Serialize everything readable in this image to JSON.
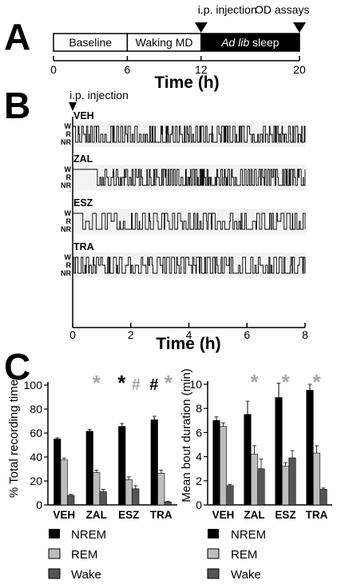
{
  "panel_a": {
    "letter": "A",
    "segments": [
      {
        "label": "Baseline",
        "start": 0,
        "end": 6,
        "fill": "#ffffff",
        "text_color": "#000000",
        "italic_part": ""
      },
      {
        "label": "Waking MD",
        "start": 6,
        "end": 12,
        "fill": "#ffffff",
        "text_color": "#000000",
        "italic_part": ""
      },
      {
        "label": " sleep",
        "start": 12,
        "end": 20,
        "fill": "#000000",
        "text_color": "#ffffff",
        "italic_part": "Ad lib"
      }
    ],
    "ticks": [
      0,
      6,
      12,
      20
    ],
    "xlabel": "Time (h)",
    "markers": [
      {
        "label": "i.p. injection",
        "at": 12
      },
      {
        "label": "OD assays",
        "at": 20
      }
    ]
  },
  "panel_b": {
    "letter": "B",
    "injection_label": "i.p. injection",
    "state_labels": [
      "W",
      "R",
      "NR"
    ],
    "traces": [
      {
        "name": "VEH",
        "onset": 0.1,
        "rate": 5.0,
        "seed": 11
      },
      {
        "name": "ZAL",
        "onset": 0.85,
        "rate": 5.6,
        "seed": 23
      },
      {
        "name": "ESZ",
        "onset": 0.35,
        "rate": 3.2,
        "seed": 37
      },
      {
        "name": "TRA",
        "onset": 0.05,
        "rate": 3.6,
        "seed": 53
      }
    ],
    "ticks": [
      0,
      2,
      4,
      6,
      8
    ],
    "xlabel": "Time (h)"
  },
  "panel_c": {
    "letter": "C",
    "colors": {
      "NREM": "#000000",
      "REM": "#bdbdbd",
      "Wake": "#555555",
      "sig_gray": "#a6a6a6"
    },
    "legend": [
      "NREM",
      "REM",
      "Wake"
    ],
    "chart_data": [
      {
        "type": "bar",
        "categories": [
          "VEH",
          "ZAL",
          "ESZ",
          "TRA"
        ],
        "ylabel": "% Total recording time",
        "ylim": [
          0,
          100
        ],
        "yticks": [
          0,
          20,
          40,
          60,
          80,
          100
        ],
        "series": [
          {
            "name": "NREM",
            "values": [
              55,
              61.5,
              65.5,
              71
            ],
            "errors": [
              1,
              1.5,
              2.5,
              3
            ]
          },
          {
            "name": "REM",
            "values": [
              37.5,
              27,
              21,
              26.5
            ],
            "errors": [
              1.5,
              2,
              2.5,
              2.5
            ]
          },
          {
            "name": "Wake",
            "values": [
              8,
              11,
              13.5,
              2.5
            ],
            "errors": [
              0.8,
              2,
              2.5,
              0.6
            ]
          }
        ],
        "annotations": [
          {
            "category": "ZAL",
            "text": "*",
            "color": "#a6a6a6",
            "offset": 0
          },
          {
            "category": "ESZ",
            "text": "*",
            "color": "#000000",
            "offset": -1
          },
          {
            "category": "ESZ",
            "text": "#",
            "color": "#a6a6a6",
            "offset": 1
          },
          {
            "category": "TRA",
            "text": "#",
            "color": "#000000",
            "offset": -1
          },
          {
            "category": "TRA",
            "text": "*",
            "color": "#a6a6a6",
            "offset": 1
          }
        ]
      },
      {
        "type": "bar",
        "categories": [
          "VEH",
          "ZAL",
          "ESZ",
          "TRA"
        ],
        "ylabel": "Mean bout duration (min)",
        "ylim": [
          0,
          10
        ],
        "yticks": [
          0,
          2,
          4,
          6,
          8,
          10
        ],
        "series": [
          {
            "name": "NREM",
            "values": [
              7.0,
              7.5,
              8.9,
              9.5
            ],
            "errors": [
              0.3,
              1.1,
              1.2,
              0.5
            ]
          },
          {
            "name": "REM",
            "values": [
              6.5,
              4.2,
              3.2,
              4.3
            ],
            "errors": [
              0.3,
              0.7,
              0.3,
              0.6
            ]
          },
          {
            "name": "Wake",
            "values": [
              1.6,
              3.0,
              3.9,
              1.3
            ],
            "errors": [
              0.1,
              0.8,
              0.6,
              0.1
            ]
          }
        ],
        "annotations": [
          {
            "category": "ZAL",
            "text": "*",
            "color": "#a6a6a6",
            "offset": 0
          },
          {
            "category": "ESZ",
            "text": "*",
            "color": "#a6a6a6",
            "offset": 0
          },
          {
            "category": "TRA",
            "text": "*",
            "color": "#a6a6a6",
            "offset": 0
          }
        ]
      }
    ]
  }
}
